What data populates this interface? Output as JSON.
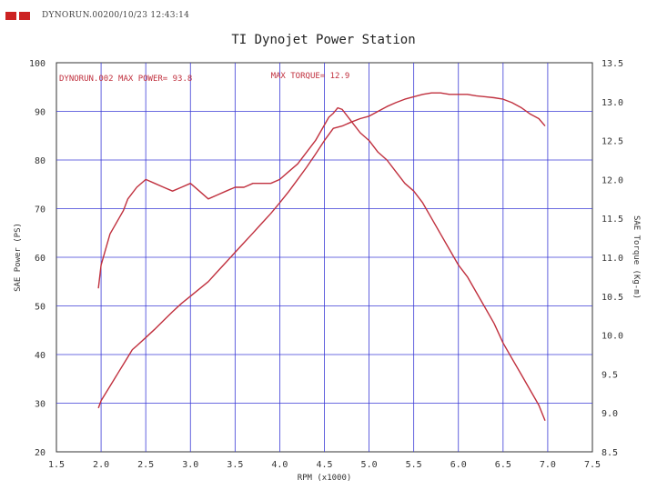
{
  "header": {
    "text": "DYNORUN.00200/10/23 12:43:14"
  },
  "chart_data": {
    "type": "line",
    "title": "TI Dynojet Power Station",
    "xlabel": "RPM (x1000)",
    "ylabel": "SAE Power (PS)",
    "y2label": "SAE Torque (Kg-m)",
    "xlim": [
      1.5,
      7.5
    ],
    "ylim": [
      20,
      100
    ],
    "y2lim": [
      8.5,
      13.5
    ],
    "grid": true,
    "x_ticks": [
      "1.5",
      "2.0",
      "2.5",
      "3.0",
      "3.5",
      "4.0",
      "4.5",
      "5.0",
      "5.5",
      "6.0",
      "6.5",
      "7.0",
      "7.5"
    ],
    "y_ticks": [
      "20",
      "30",
      "40",
      "50",
      "60",
      "70",
      "80",
      "90",
      "100"
    ],
    "y2_ticks": [
      "8.5",
      "9.0",
      "9.5",
      "10.0",
      "10.5",
      "11.0",
      "11.5",
      "12.0",
      "12.5",
      "13.0",
      "13.5"
    ],
    "annotations": {
      "run_and_power": "DYNORUN.002  MAX POWER= 93.8",
      "max_torque": "MAX TORQUE= 12.9"
    },
    "line_color": "#c0303e",
    "series": [
      {
        "axis": "left",
        "x": [
          1.97,
          2.0,
          2.05,
          2.1,
          2.15,
          2.2,
          2.25,
          2.3,
          2.35,
          2.4,
          2.5,
          2.6,
          2.7,
          2.8,
          2.9,
          3.0,
          3.1,
          3.2,
          3.3,
          3.4,
          3.5,
          3.6,
          3.7,
          3.8,
          3.9,
          4.0,
          4.1,
          4.2,
          4.3,
          4.4,
          4.5,
          4.6,
          4.7,
          4.8,
          4.9,
          5.0,
          5.1,
          5.2,
          5.3,
          5.4,
          5.5,
          5.6,
          5.7,
          5.8,
          5.9,
          6.0,
          6.1,
          6.2,
          6.3,
          6.4,
          6.5,
          6.6,
          6.7,
          6.8,
          6.9,
          6.97
        ],
        "values": [
          29.0,
          30.5,
          32.0,
          33.5,
          35.0,
          36.5,
          38.0,
          39.5,
          41.0,
          41.8,
          43.5,
          45.2,
          47.0,
          48.8,
          50.5,
          52.0,
          53.5,
          55.0,
          57.0,
          59.0,
          61.0,
          63.0,
          65.0,
          67.0,
          69.0,
          71.2,
          73.5,
          76.0,
          78.5,
          81.2,
          84.0,
          86.5,
          87.0,
          87.8,
          88.5,
          89.0,
          90.0,
          91.0,
          91.8,
          92.5,
          93.0,
          93.5,
          93.8,
          93.8,
          93.5,
          93.5,
          93.5,
          93.2,
          93.0,
          92.8,
          92.5,
          91.8,
          90.8,
          89.5,
          88.5,
          87.0
        ]
      },
      {
        "axis": "right",
        "x": [
          1.97,
          2.0,
          2.05,
          2.1,
          2.15,
          2.2,
          2.25,
          2.3,
          2.4,
          2.5,
          2.6,
          2.7,
          2.8,
          2.9,
          3.0,
          3.1,
          3.2,
          3.3,
          3.4,
          3.5,
          3.6,
          3.7,
          3.8,
          3.9,
          4.0,
          4.1,
          4.2,
          4.3,
          4.4,
          4.5,
          4.55,
          4.6,
          4.65,
          4.7,
          4.8,
          4.9,
          5.0,
          5.1,
          5.2,
          5.3,
          5.4,
          5.5,
          5.6,
          5.7,
          5.8,
          5.9,
          6.0,
          6.1,
          6.2,
          6.3,
          6.4,
          6.5,
          6.6,
          6.7,
          6.8,
          6.9,
          6.97
        ],
        "values": [
          10.6,
          10.9,
          11.1,
          11.3,
          11.4,
          11.5,
          11.6,
          11.75,
          11.9,
          12.0,
          11.95,
          11.9,
          11.85,
          11.9,
          11.95,
          11.85,
          11.75,
          11.8,
          11.85,
          11.9,
          11.9,
          11.95,
          11.95,
          11.95,
          12.0,
          12.1,
          12.2,
          12.35,
          12.5,
          12.7,
          12.8,
          12.85,
          12.92,
          12.9,
          12.75,
          12.6,
          12.5,
          12.35,
          12.25,
          12.1,
          11.95,
          11.85,
          11.7,
          11.5,
          11.3,
          11.1,
          10.9,
          10.75,
          10.55,
          10.35,
          10.15,
          9.9,
          9.7,
          9.5,
          9.3,
          9.1,
          8.9
        ]
      }
    ]
  }
}
